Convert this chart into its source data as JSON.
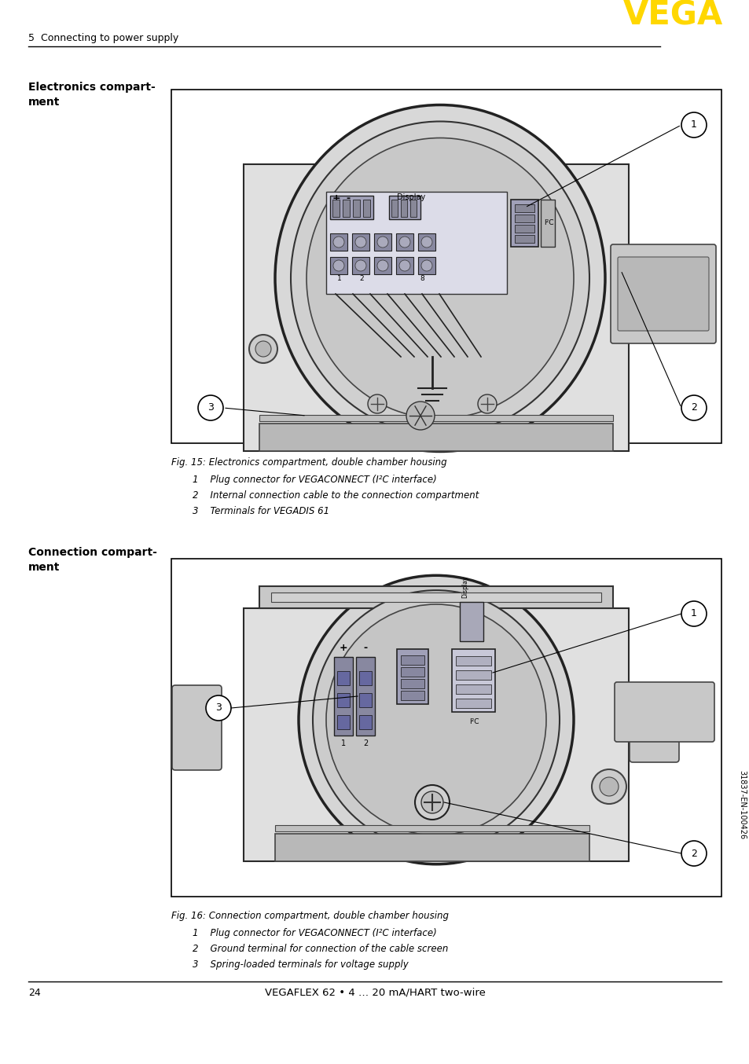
{
  "page_number": "24",
  "footer_text": "VEGAFLEX 62 • 4 … 20 mA/HART two-wire",
  "header_section": "5  Connecting to power supply",
  "vega_logo": "VEGA",
  "logo_color": "#FFD700",
  "section1_title": "Electronics compart-\nment",
  "section2_title": "Connection compart-\nment",
  "fig1_caption": "Fig. 15: Electronics compartment, double chamber housing",
  "fig1_items": [
    "1    Plug connector for VEGACONNECT (I²C interface)",
    "2    Internal connection cable to the connection compartment",
    "3    Terminals for VEGADIS 61"
  ],
  "fig2_caption": "Fig. 16: Connection compartment, double chamber housing",
  "fig2_items": [
    "1    Plug connector for VEGACONNECT (I²C interface)",
    "2    Ground terminal for connection of the cable screen",
    "3    Spring-loaded terminals for voltage supply"
  ],
  "sidebar_text": "31837-EN-100426",
  "bg_color": "#ffffff",
  "text_color": "#000000",
  "border_color": "#000000"
}
